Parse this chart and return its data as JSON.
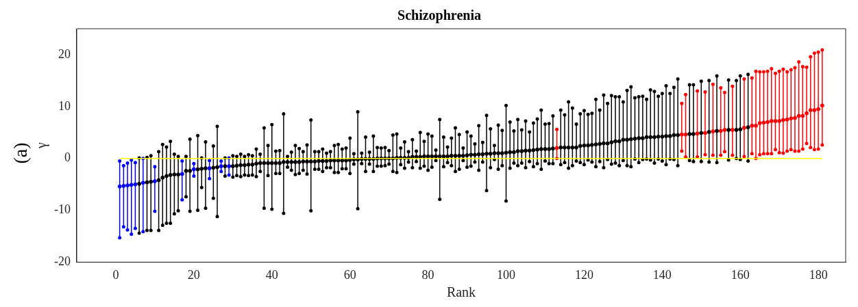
{
  "chart_data": {
    "type": "scatter",
    "title": "Schizophrenia",
    "xlabel": "Rank",
    "ylabel": "γ",
    "annotations": [
      "(a)"
    ],
    "marker": "circle",
    "x": [
      1,
      2,
      3,
      4,
      5,
      6,
      7,
      8,
      9,
      10,
      11,
      12,
      13,
      14,
      15,
      16,
      17,
      18,
      19,
      20,
      21,
      22,
      23,
      24,
      25,
      26,
      27,
      28,
      29,
      30,
      31,
      32,
      33,
      34,
      35,
      36,
      37,
      38,
      39,
      40,
      41,
      42,
      43,
      44,
      45,
      46,
      47,
      48,
      49,
      50,
      51,
      52,
      53,
      54,
      55,
      56,
      57,
      58,
      59,
      60,
      61,
      62,
      63,
      64,
      65,
      66,
      67,
      68,
      69,
      70,
      71,
      72,
      73,
      74,
      75,
      76,
      77,
      78,
      79,
      80,
      81,
      82,
      83,
      84,
      85,
      86,
      87,
      88,
      89,
      90,
      91,
      92,
      93,
      94,
      95,
      96,
      97,
      98,
      99,
      100,
      101,
      102,
      103,
      104,
      105,
      106,
      107,
      108,
      109,
      110,
      111,
      112,
      113,
      114,
      115,
      116,
      117,
      118,
      119,
      120,
      121,
      122,
      123,
      124,
      125,
      126,
      127,
      128,
      129,
      130,
      131,
      132,
      133,
      134,
      135,
      136,
      137,
      138,
      139,
      140,
      141,
      142,
      143,
      144,
      145,
      146,
      147,
      148,
      149,
      150,
      151,
      152,
      153,
      154,
      155,
      156,
      157,
      158,
      159,
      160,
      161,
      162,
      163,
      164,
      165,
      166,
      167,
      168,
      169,
      170,
      171,
      172,
      173,
      174,
      175,
      176,
      177,
      178,
      179,
      180,
      181
    ],
    "values": [
      -5.4,
      -5.3,
      -5.2,
      -5.1,
      -5.0,
      -4.9,
      -4.7,
      -4.6,
      -4.5,
      -4.4,
      -4.2,
      -3.7,
      -3.4,
      -3.2,
      -3.1,
      -3.1,
      -3.0,
      -2.4,
      -2.4,
      -2.1,
      -2.1,
      -2.0,
      -1.9,
      -1.9,
      -1.8,
      -1.7,
      -1.5,
      -1.5,
      -1.5,
      -1.5,
      -1.4,
      -1.3,
      -1.3,
      -1.2,
      -1.2,
      -1.0,
      -0.9,
      -0.9,
      -0.9,
      -0.9,
      -0.9,
      -0.9,
      -0.7,
      -0.7,
      -0.7,
      -0.7,
      -0.7,
      -0.6,
      -0.6,
      -0.6,
      -0.6,
      -0.5,
      -0.5,
      -0.5,
      -0.4,
      -0.4,
      -0.4,
      -0.4,
      -0.4,
      -0.3,
      -0.2,
      -0.2,
      -0.1,
      -0.1,
      -0.1,
      -0.1,
      0.0,
      0.0,
      0.0,
      0.0,
      0.0,
      0.1,
      0.1,
      0.1,
      0.1,
      0.3,
      0.3,
      0.3,
      0.4,
      0.4,
      0.4,
      0.4,
      0.4,
      0.4,
      0.4,
      0.5,
      0.5,
      0.5,
      0.5,
      0.6,
      0.7,
      0.7,
      0.8,
      0.8,
      0.9,
      0.9,
      1.0,
      1.0,
      1.0,
      1.1,
      1.2,
      1.2,
      1.4,
      1.4,
      1.5,
      1.5,
      1.6,
      1.7,
      1.8,
      1.8,
      1.8,
      1.9,
      2.0,
      2.1,
      2.1,
      2.1,
      2.1,
      2.1,
      2.4,
      2.5,
      2.5,
      2.6,
      2.7,
      2.8,
      2.9,
      2.9,
      3.1,
      3.3,
      3.3,
      3.6,
      3.6,
      3.7,
      3.8,
      3.9,
      3.9,
      4.1,
      4.1,
      4.1,
      4.2,
      4.2,
      4.3,
      4.3,
      4.5,
      4.5,
      4.6,
      4.6,
      4.7,
      4.7,
      4.8,
      4.9,
      4.9,
      5.1,
      5.2,
      5.3,
      5.3,
      5.5,
      5.5,
      5.5,
      5.5,
      5.6,
      5.9,
      6.0,
      6.3,
      6.3,
      6.8,
      6.9,
      7.0,
      7.2,
      7.2,
      7.2,
      7.4,
      7.5,
      7.7,
      7.8,
      8.2,
      8.2,
      8.7,
      9.3,
      9.3,
      9.5,
      10.2
    ],
    "errors": [
      [
        -15.3,
        -0.5
      ],
      [
        -13.2,
        -1.4
      ],
      [
        -13.8,
        -0.9
      ],
      [
        -14.6,
        -0.3
      ],
      [
        -13.5,
        -0.8
      ],
      [
        -14.4,
        0.1
      ],
      [
        -14.1,
        0
      ],
      [
        -13.9,
        0.2
      ],
      [
        -13.9,
        0.5
      ],
      [
        -10.2,
        -1.6
      ],
      [
        -13.9,
        1.3
      ],
      [
        -12.9,
        2.7
      ],
      [
        -12.5,
        2.2
      ],
      [
        -12.5,
        3.3
      ],
      [
        -10.7,
        0.8
      ],
      [
        -10.1,
        0.4
      ],
      [
        -8.0,
        -0.5
      ],
      [
        -7.4,
        0.4
      ],
      [
        -10.2,
        3.7
      ],
      [
        -3.4,
        -1.0
      ],
      [
        -10.0,
        4.4
      ],
      [
        -5.6,
        0.1
      ],
      [
        -9.6,
        3.2
      ],
      [
        -3.9,
        -0.4
      ],
      [
        -7.7,
        2.4
      ],
      [
        -11.2,
        6.2
      ],
      [
        -2.5,
        -0.5
      ],
      [
        -3.4,
        0.1
      ],
      [
        -3.2,
        0.1
      ],
      [
        -3.6,
        0.5
      ],
      [
        -3.3,
        0.4
      ],
      [
        -3.5,
        0.8
      ],
      [
        -3.2,
        0.4
      ],
      [
        -3.3,
        0.7
      ],
      [
        -3.2,
        0.5
      ],
      [
        -3.5,
        1.8
      ],
      [
        -2.5,
        0.8
      ],
      [
        -9.6,
        5.9
      ],
      [
        -3.3,
        2.5
      ],
      [
        -9.8,
        6.5
      ],
      [
        -2.9,
        1.4
      ],
      [
        -2.9,
        1.5
      ],
      [
        -10.6,
        8.6
      ],
      [
        -1.7,
        0.4
      ],
      [
        -2.3,
        1.2
      ],
      [
        -3.1,
        2.5
      ],
      [
        -2.9,
        1.9
      ],
      [
        -2.3,
        1.3
      ],
      [
        -3.0,
        2.6
      ],
      [
        -10.1,
        7.4
      ],
      [
        -2.1,
        1.3
      ],
      [
        -2.1,
        1.3
      ],
      [
        -2.5,
        1.8
      ],
      [
        -1.8,
        1.0
      ],
      [
        -1.8,
        1.3
      ],
      [
        -2.7,
        2.5
      ],
      [
        -2.7,
        2.7
      ],
      [
        -2.0,
        1.8
      ],
      [
        -2.0,
        2.0
      ],
      [
        -2.9,
        3.9
      ],
      [
        -1.1,
        0.9
      ],
      [
        -9.7,
        9.0
      ],
      [
        -1.0,
        1.0
      ],
      [
        -2.5,
        4.1
      ],
      [
        -1.1,
        1.2
      ],
      [
        -2.5,
        4.3
      ],
      [
        -1.5,
        2.1
      ],
      [
        -1.5,
        2.0
      ],
      [
        -1.4,
        2.1
      ],
      [
        -1.1,
        1.5
      ],
      [
        -2.5,
        4.5
      ],
      [
        -2.7,
        4.7
      ],
      [
        -1.2,
        2.0
      ],
      [
        -1.9,
        3.2
      ],
      [
        -0.7,
        1.3
      ],
      [
        -1.8,
        3.6
      ],
      [
        -0.6,
        1.4
      ],
      [
        -1.9,
        5.0
      ],
      [
        -1.5,
        3.3
      ],
      [
        -2.3,
        4.7
      ],
      [
        -1.7,
        4.3
      ],
      [
        -0.4,
        1.6
      ],
      [
        -7.9,
        7.5
      ],
      [
        -1.6,
        4.1
      ],
      [
        -0.8,
        2.2
      ],
      [
        -1.4,
        3.9
      ],
      [
        -2.5,
        5.9
      ],
      [
        -2.1,
        4.6
      ],
      [
        -0.4,
        2.0
      ],
      [
        -1.7,
        5.1
      ],
      [
        -1.5,
        4.3
      ],
      [
        -0.7,
        2.8
      ],
      [
        -2.3,
        6.3
      ],
      [
        -0.7,
        3.1
      ],
      [
        -6.2,
        8.3
      ],
      [
        -1.8,
        5.7
      ],
      [
        -0.2,
        2.5
      ],
      [
        -2.1,
        6.4
      ],
      [
        -1.4,
        5.4
      ],
      [
        -8.2,
        10.2
      ],
      [
        -1.9,
        7.0
      ],
      [
        -0.9,
        5.3
      ],
      [
        -1.4,
        7.5
      ],
      [
        -0.9,
        5.5
      ],
      [
        -1.8,
        7.2
      ],
      [
        -0.6,
        5.1
      ],
      [
        -1.6,
        6.8
      ],
      [
        -1.0,
        7.6
      ],
      [
        -2.1,
        9.3
      ],
      [
        -0.5,
        6.6
      ],
      [
        -1.0,
        6.7
      ],
      [
        -1.0,
        8.2
      ],
      [
        0.0,
        5.6
      ],
      [
        -1.2,
        9.3
      ],
      [
        -0.8,
        8.4
      ],
      [
        -1.9,
        10.9
      ],
      [
        -1.4,
        9.7
      ],
      [
        -0.5,
        6.6
      ],
      [
        -0.8,
        8.6
      ],
      [
        -1.2,
        9.2
      ],
      [
        -0.3,
        8.5
      ],
      [
        -0.7,
        8.7
      ],
      [
        -1.6,
        11.4
      ],
      [
        -0.6,
        9.3
      ],
      [
        -1.8,
        12.2
      ],
      [
        -0.2,
        10.6
      ],
      [
        -1.1,
        12.1
      ],
      [
        -0.9,
        11.9
      ],
      [
        -1.4,
        11.9
      ],
      [
        -0.4,
        10.9
      ],
      [
        -1.4,
        13.1
      ],
      [
        -1.6,
        13.8
      ],
      [
        -0.1,
        11.7
      ],
      [
        -0.8,
        11.9
      ],
      [
        -0.2,
        12.0
      ],
      [
        -0.1,
        11.4
      ],
      [
        -0.3,
        13.2
      ],
      [
        -0.9,
        12.9
      ],
      [
        -0.1,
        12.0
      ],
      [
        -0.5,
        12.5
      ],
      [
        -1.2,
        14.0
      ],
      [
        -0.1,
        12.5
      ],
      [
        -0.2,
        13.7
      ],
      [
        -1.4,
        15.3
      ],
      [
        1.4,
        10.6
      ],
      [
        0.3,
        12.3
      ],
      [
        -0.4,
        14.2
      ],
      [
        -0.6,
        14.2
      ],
      [
        0.3,
        13.0
      ],
      [
        -0.6,
        14.9
      ],
      [
        0.7,
        12.8
      ],
      [
        -0.7,
        15.0
      ],
      [
        0.6,
        14.3
      ],
      [
        -0.8,
        15.9
      ],
      [
        0.6,
        13.6
      ],
      [
        1.3,
        12.7
      ],
      [
        -0.3,
        15.1
      ],
      [
        0.6,
        13.9
      ],
      [
        0.0,
        15.0
      ],
      [
        -0.2,
        15.9
      ],
      [
        0.4,
        15.3
      ],
      [
        -0.5,
        16.2
      ],
      [
        0.9,
        15.5
      ],
      [
        0.0,
        16.8
      ],
      [
        0.7,
        16.7
      ],
      [
        0.9,
        16.7
      ],
      [
        0.9,
        16.8
      ],
      [
        0.9,
        17.3
      ],
      [
        1.7,
        16.4
      ],
      [
        1.1,
        16.8
      ],
      [
        1.0,
        17.2
      ],
      [
        1.4,
        16.7
      ],
      [
        1.7,
        17.1
      ],
      [
        1.4,
        17.5
      ],
      [
        1.4,
        18.6
      ],
      [
        1.8,
        17.7
      ],
      [
        2.9,
        17.6
      ],
      [
        2.1,
        19.6
      ],
      [
        1.7,
        20.3
      ],
      [
        1.8,
        20.5
      ],
      [
        2.6,
        20.9
      ]
    ],
    "colors": [
      "#0000ff",
      "#0000ff",
      "#0000ff",
      "#0000ff",
      "#0000ff",
      "#000000",
      "#0000ff",
      "#000000",
      "#000000",
      "#0000ff",
      "#000000",
      "#000000",
      "#000000",
      "#000000",
      "#000000",
      "#000000",
      "#0000ff",
      "#000000",
      "#000000",
      "#0000ff",
      "#000000",
      "#000000",
      "#000000",
      "#0000ff",
      "#000000",
      "#000000",
      "#0000ff",
      "#000000",
      "#0000ff",
      "#000000",
      "#000000",
      "#000000",
      "#000000",
      "#000000",
      "#000000",
      "#000000",
      "#000000",
      "#000000",
      "#000000",
      "#000000",
      "#000000",
      "#000000",
      "#000000",
      "#000000",
      "#000000",
      "#000000",
      "#000000",
      "#000000",
      "#000000",
      "#000000",
      "#000000",
      "#000000",
      "#000000",
      "#000000",
      "#000000",
      "#000000",
      "#000000",
      "#000000",
      "#000000",
      "#000000",
      "#000000",
      "#000000",
      "#000000",
      "#000000",
      "#000000",
      "#000000",
      "#000000",
      "#000000",
      "#000000",
      "#000000",
      "#000000",
      "#000000",
      "#000000",
      "#000000",
      "#000000",
      "#000000",
      "#000000",
      "#000000",
      "#000000",
      "#000000",
      "#000000",
      "#000000",
      "#000000",
      "#000000",
      "#000000",
      "#000000",
      "#000000",
      "#000000",
      "#000000",
      "#000000",
      "#000000",
      "#000000",
      "#000000",
      "#000000",
      "#000000",
      "#000000",
      "#000000",
      "#000000",
      "#000000",
      "#000000",
      "#000000",
      "#000000",
      "#000000",
      "#000000",
      "#000000",
      "#000000",
      "#000000",
      "#000000",
      "#000000",
      "#000000",
      "#000000",
      "#000000",
      "#ff0000",
      "#000000",
      "#000000",
      "#000000",
      "#000000",
      "#000000",
      "#000000",
      "#000000",
      "#000000",
      "#000000",
      "#000000",
      "#000000",
      "#000000",
      "#000000",
      "#000000",
      "#000000",
      "#000000",
      "#000000",
      "#000000",
      "#000000",
      "#000000",
      "#000000",
      "#000000",
      "#000000",
      "#000000",
      "#000000",
      "#000000",
      "#000000",
      "#000000",
      "#000000",
      "#000000",
      "#000000",
      "#ff0000",
      "#ff0000",
      "#000000",
      "#000000",
      "#ff0000",
      "#000000",
      "#ff0000",
      "#000000",
      "#ff0000",
      "#000000",
      "#ff0000",
      "#ff0000",
      "#000000",
      "#ff0000",
      "#000000",
      "#000000",
      "#ff0000",
      "#000000",
      "#ff0000",
      "#ff0000",
      "#ff0000",
      "#ff0000",
      "#ff0000",
      "#ff0000",
      "#ff0000",
      "#ff0000",
      "#ff0000",
      "#ff0000",
      "#ff0000",
      "#ff0000",
      "#ff0000",
      "#ff0000",
      "#ff0000",
      "#ff0000",
      "#ff0000",
      "#ff0000",
      "#ff0000"
    ],
    "ref_lines": [
      {
        "axis": "y",
        "value": 0,
        "color": "#ffff00"
      }
    ],
    "xlim": [
      -10,
      187
    ],
    "xticks": [
      0,
      20,
      40,
      60,
      80,
      100,
      120,
      140,
      160,
      180
    ],
    "ylim": [
      -20,
      25
    ],
    "yticks": [
      -20,
      -10,
      0,
      10,
      20
    ]
  }
}
